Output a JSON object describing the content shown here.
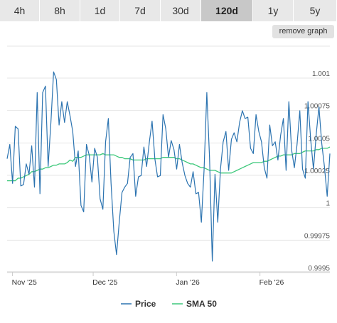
{
  "range_tabs": [
    {
      "label": "4h",
      "active": false
    },
    {
      "label": "8h",
      "active": false
    },
    {
      "label": "1d",
      "active": false
    },
    {
      "label": "7d",
      "active": false
    },
    {
      "label": "30d",
      "active": false
    },
    {
      "label": "120d",
      "active": true
    },
    {
      "label": "1y",
      "active": false
    },
    {
      "label": "5y",
      "active": false
    }
  ],
  "remove_graph_label": "remove graph",
  "chart_data": {
    "type": "line",
    "title": "",
    "xlabel": "",
    "ylabel": "",
    "ylim": [
      0.9995,
      1.001
    ],
    "y_ticks": [
      {
        "value": 1.001,
        "label": "1.001"
      },
      {
        "value": 1.00075,
        "label": "1.00075"
      },
      {
        "value": 1.0005,
        "label": "1.0005"
      },
      {
        "value": 1.00025,
        "label": "1.00025"
      },
      {
        "value": 1.0,
        "label": "1"
      },
      {
        "value": 0.99975,
        "label": "0.99975"
      },
      {
        "value": 0.9995,
        "label": "0.9995"
      }
    ],
    "x_range": [
      0,
      120
    ],
    "x_ticks": [
      {
        "x": 2,
        "label": "Nov '25"
      },
      {
        "x": 32,
        "label": "Dec '25"
      },
      {
        "x": 63,
        "label": "Jan '26"
      },
      {
        "x": 94,
        "label": "Feb '26"
      }
    ],
    "grid": true,
    "legend_position": "bottom-center",
    "series": [
      {
        "name": "Price",
        "color": "#2b73b0",
        "values": [
          1.00034,
          1.00045,
          1.00015,
          1.00059,
          1.00057,
          1.00013,
          1.00014,
          1.0003,
          1.00022,
          1.00044,
          1.00012,
          1.00085,
          1.00007,
          1.00085,
          1.0009,
          1.00028,
          1.00062,
          1.00101,
          1.00095,
          1.0006,
          1.00078,
          1.00062,
          1.00078,
          1.00067,
          1.00055,
          1.00028,
          1.0004,
          0.99998,
          0.99993,
          1.00045,
          1.00037,
          1.00016,
          1.00042,
          1.00035,
          1.00003,
          0.99995,
          1.00047,
          1.00065,
          1.00015,
          0.99978,
          0.9996,
          0.99985,
          1.00008,
          1.00012,
          1.00015,
          1.00035,
          1.00038,
          1.00005,
          1.0002,
          1.00021,
          1.00043,
          1.00028,
          1.00047,
          1.00063,
          1.00034,
          1.0002,
          1.00021,
          1.00068,
          1.00057,
          1.00035,
          1.00048,
          1.00041,
          1.00026,
          1.00045,
          1.00031,
          1.00021,
          1.00015,
          1.00012,
          1.00024,
          1.00007,
          1.00008,
          0.99985,
          1.00025,
          1.00085,
          1.00035,
          0.99955,
          1.00022,
          0.99985,
          1.00026,
          1.00047,
          1.00055,
          1.00025,
          1.00049,
          1.00054,
          1.00047,
          1.00062,
          1.00071,
          1.00065,
          1.00066,
          1.00042,
          1.00038,
          1.00068,
          1.00055,
          1.00047,
          1.00027,
          1.00019,
          1.0006,
          1.00044,
          1.00047,
          1.00033,
          1.00052,
          1.00065,
          1.00025,
          1.00078,
          1.00041,
          1.00027,
          1.00045,
          1.00071,
          1.00026,
          1.00019,
          1.00078,
          1.00048,
          1.00026,
          1.00053,
          1.00074,
          1.00046,
          1.00028,
          1.00005,
          1.00038
        ]
      },
      {
        "name": "SMA 50",
        "color": "#3cc87a",
        "values": [
          1.00017,
          1.00017,
          1.00017,
          1.00017,
          1.00019,
          1.00019,
          1.0002,
          1.00021,
          1.00022,
          1.00024,
          1.00024,
          1.00025,
          1.00026,
          1.00026,
          1.00027,
          1.00027,
          1.00028,
          1.00029,
          1.00029,
          1.0003,
          1.0003,
          1.0003,
          1.00031,
          1.00033,
          1.00032,
          1.00035,
          1.00035,
          1.00035,
          1.00036,
          1.00037,
          1.00037,
          1.00037,
          1.00037,
          1.00037,
          1.00037,
          1.00038,
          1.00037,
          1.00037,
          1.00037,
          1.00037,
          1.00036,
          1.00035,
          1.00035,
          1.00034,
          1.00034,
          1.00034,
          1.00033,
          1.00033,
          1.00033,
          1.00033,
          1.00033,
          1.00034,
          1.00034,
          1.00034,
          1.00034,
          1.00034,
          1.00034,
          1.00035,
          1.00035,
          1.00035,
          1.00035,
          1.00035,
          1.00034,
          1.00034,
          1.00033,
          1.00032,
          1.00031,
          1.0003,
          1.0003,
          1.00029,
          1.00028,
          1.00027,
          1.00027,
          1.00026,
          1.00025,
          1.00025,
          1.00025,
          1.00024,
          1.00023,
          1.00023,
          1.00023,
          1.00023,
          1.00023,
          1.00024,
          1.00025,
          1.00026,
          1.00027,
          1.00028,
          1.00029,
          1.0003,
          1.00031,
          1.00031,
          1.00031,
          1.00031,
          1.00032,
          1.00032,
          1.00033,
          1.00034,
          1.00035,
          1.00036,
          1.00036,
          1.00037,
          1.00037,
          1.00037,
          1.00037,
          1.00038,
          1.00038,
          1.00038,
          1.00039,
          1.0004,
          1.0004,
          1.0004,
          1.0004,
          1.00041,
          1.00041,
          1.00042,
          1.00042,
          1.00042,
          1.00043
        ]
      }
    ]
  }
}
